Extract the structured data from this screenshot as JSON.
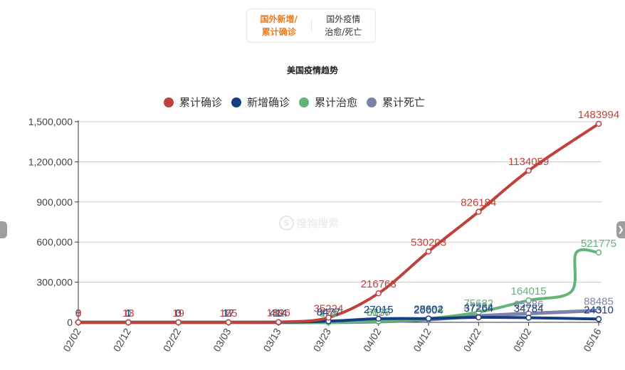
{
  "tabs": [
    {
      "label_line1": "国外新增/",
      "label_line2": "累计确诊",
      "active": true
    },
    {
      "label_line1": "国外疫情",
      "label_line2": "治愈/死亡",
      "active": false
    }
  ],
  "watermark": {
    "icon": "sogou-logo-icon",
    "text": "搜狗搜索"
  },
  "pager": {
    "left_icon": "prev-handle",
    "right_icon": "next-arrow-icon",
    "right_glyph": "❯"
  },
  "colors": {
    "confirmed": "#c0413b",
    "new": "#163d82",
    "cured": "#63b478",
    "dead": "#7f82a8",
    "grid": "#cccccc",
    "axis": "#333333"
  },
  "chart_data": {
    "type": "line",
    "title": "美国疫情趋势",
    "legend": [
      "累计确诊",
      "新增确诊",
      "累计治愈",
      "累计死亡"
    ],
    "legend_position": "top",
    "xlabel": "",
    "ylabel": "",
    "ylim": [
      0,
      1500000
    ],
    "yticks": [
      "0",
      "300,000",
      "600,000",
      "900,000",
      "1,200,000",
      "1,500,000"
    ],
    "grid": true,
    "categories": [
      "02/02",
      "02/12",
      "02/22",
      "03/03",
      "03/13",
      "03/23",
      "04/02",
      "04/12",
      "04/22",
      "05/02",
      "05/16"
    ],
    "series": [
      {
        "name": "累计确诊",
        "color": "#c0413b",
        "values": [
          8,
          13,
          19,
          125,
          1896,
          35224,
          216768,
          530203,
          826184,
          1134059,
          1483994
        ]
      },
      {
        "name": "新增确诊",
        "color": "#163d82",
        "values": [
          0,
          1,
          0,
          17,
          414,
          8477,
          27015,
          28602,
          37264,
          34784,
          24310
        ]
      },
      {
        "name": "累计治愈",
        "color": "#63b478",
        "values": [
          0,
          1,
          3,
          7,
          12,
          178,
          8878,
          27984,
          75682,
          164015,
          521775
        ]
      },
      {
        "name": "累计死亡",
        "color": "#7f82a8",
        "values": [
          0,
          0,
          0,
          6,
          41,
          471,
          5137,
          20604,
          47264,
          65886,
          88485
        ]
      }
    ]
  }
}
